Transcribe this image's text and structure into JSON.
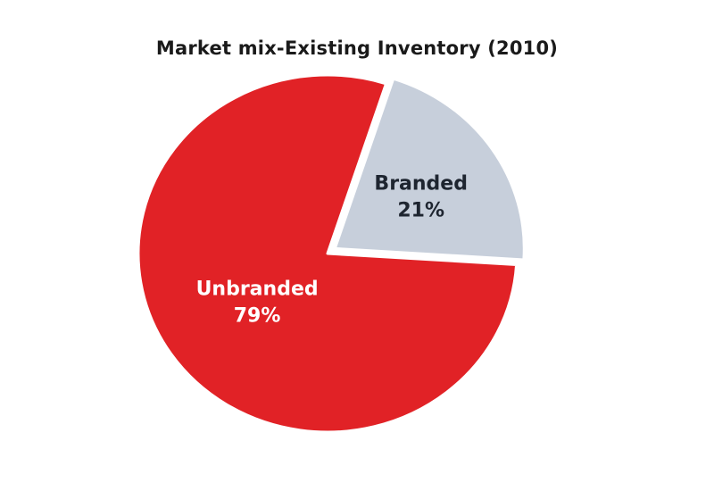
{
  "chart_data": {
    "type": "pie",
    "title": "Market mix-Existing Inventory (2010)",
    "slices": [
      {
        "label": "Branded",
        "value": 21,
        "value_label": "21%",
        "color": "#c7cfdb",
        "text_color": "#1e2530"
      },
      {
        "label": "Unbranded",
        "value": 79,
        "value_label": "79%",
        "color": "#e12226",
        "text_color": "#ffffff"
      }
    ],
    "legend": "none"
  }
}
